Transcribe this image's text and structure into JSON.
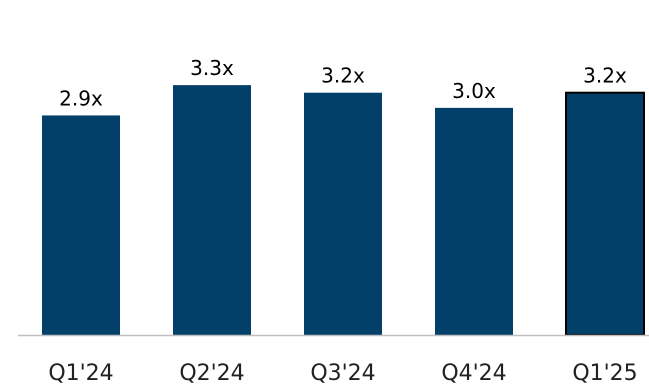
{
  "chart_data": {
    "type": "bar",
    "title": "",
    "xlabel": "",
    "ylabel": "",
    "categories": [
      "Q1'24",
      "Q2'24",
      "Q3'24",
      "Q4'24",
      "Q1'25"
    ],
    "values": [
      2.9,
      3.3,
      3.2,
      3.0,
      3.2
    ],
    "data_labels": [
      "2.9x",
      "3.3x",
      "3.2x",
      "3.0x",
      "3.2x"
    ],
    "ylim": [
      0,
      3.5
    ],
    "grid": false,
    "legend": "none",
    "colors": {
      "bar": "#02406A",
      "highlight_outline": "#000000",
      "baseline": "#BFBFBF"
    },
    "highlighted_category": "Q1'25"
  }
}
